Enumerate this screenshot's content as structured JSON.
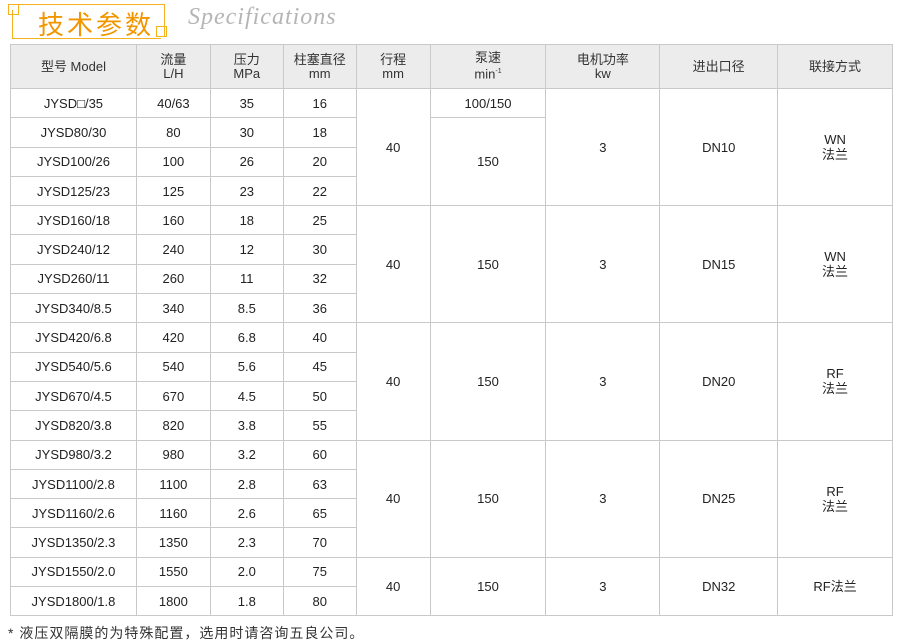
{
  "title": {
    "cn": "技术参数",
    "en": "Specifications"
  },
  "accent_color": "#f29600",
  "headers": [
    {
      "l1": "型号 Model",
      "l2": ""
    },
    {
      "l1": "流量",
      "l2": "L/H"
    },
    {
      "l1": "压力",
      "l2": "MPa"
    },
    {
      "l1": "柱塞直径",
      "l2": "mm"
    },
    {
      "l1": "行程",
      "l2": "mm"
    },
    {
      "l1": "泵速",
      "l2": "min",
      "sup": "-1"
    },
    {
      "l1": "电机功率",
      "l2": "kw"
    },
    {
      "l1": "进出口径",
      "l2": ""
    },
    {
      "l1": "联接方式",
      "l2": ""
    }
  ],
  "rows": [
    [
      "JYSD□/35",
      "40/63",
      "35",
      "16"
    ],
    [
      "JYSD80/30",
      "80",
      "30",
      "18"
    ],
    [
      "JYSD100/26",
      "100",
      "26",
      "20"
    ],
    [
      "JYSD125/23",
      "125",
      "23",
      "22"
    ],
    [
      "JYSD160/18",
      "160",
      "18",
      "25"
    ],
    [
      "JYSD240/12",
      "240",
      "12",
      "30"
    ],
    [
      "JYSD260/11",
      "260",
      "11",
      "32"
    ],
    [
      "JYSD340/8.5",
      "340",
      "8.5",
      "36"
    ],
    [
      "JYSD420/6.8",
      "420",
      "6.8",
      "40"
    ],
    [
      "JYSD540/5.6",
      "540",
      "5.6",
      "45"
    ],
    [
      "JYSD670/4.5",
      "670",
      "4.5",
      "50"
    ],
    [
      "JYSD820/3.8",
      "820",
      "3.8",
      "55"
    ],
    [
      "JYSD980/3.2",
      "980",
      "3.2",
      "60"
    ],
    [
      "JYSD1100/2.8",
      "1100",
      "2.8",
      "63"
    ],
    [
      "JYSD1160/2.6",
      "1160",
      "2.6",
      "65"
    ],
    [
      "JYSD1350/2.3",
      "1350",
      "2.3",
      "70"
    ],
    [
      "JYSD1550/2.0",
      "1550",
      "2.0",
      "75"
    ],
    [
      "JYSD1800/1.8",
      "1800",
      "1.8",
      "80"
    ]
  ],
  "groups": [
    {
      "rows": 4,
      "stroke": "40",
      "speed_first": "100/150",
      "speed": "150",
      "power": "3",
      "port": "DN10",
      "conn1": "WN",
      "conn2": "法兰"
    },
    {
      "rows": 4,
      "stroke": "40",
      "speed": "150",
      "power": "3",
      "port": "DN15",
      "conn1": "WN",
      "conn2": "法兰"
    },
    {
      "rows": 4,
      "stroke": "40",
      "speed": "150",
      "power": "3",
      "port": "DN20",
      "conn1": "RF",
      "conn2": "法兰"
    },
    {
      "rows": 4,
      "stroke": "40",
      "speed": "150",
      "power": "3",
      "port": "DN25",
      "conn1": "RF",
      "conn2": "法兰"
    },
    {
      "rows": 2,
      "stroke": "40",
      "speed": "150",
      "power": "3",
      "port": "DN32",
      "conn1": "RF法兰",
      "conn2": ""
    }
  ],
  "footnote": "* 液压双隔膜的为特殊配置，选用时请咨询五良公司。"
}
